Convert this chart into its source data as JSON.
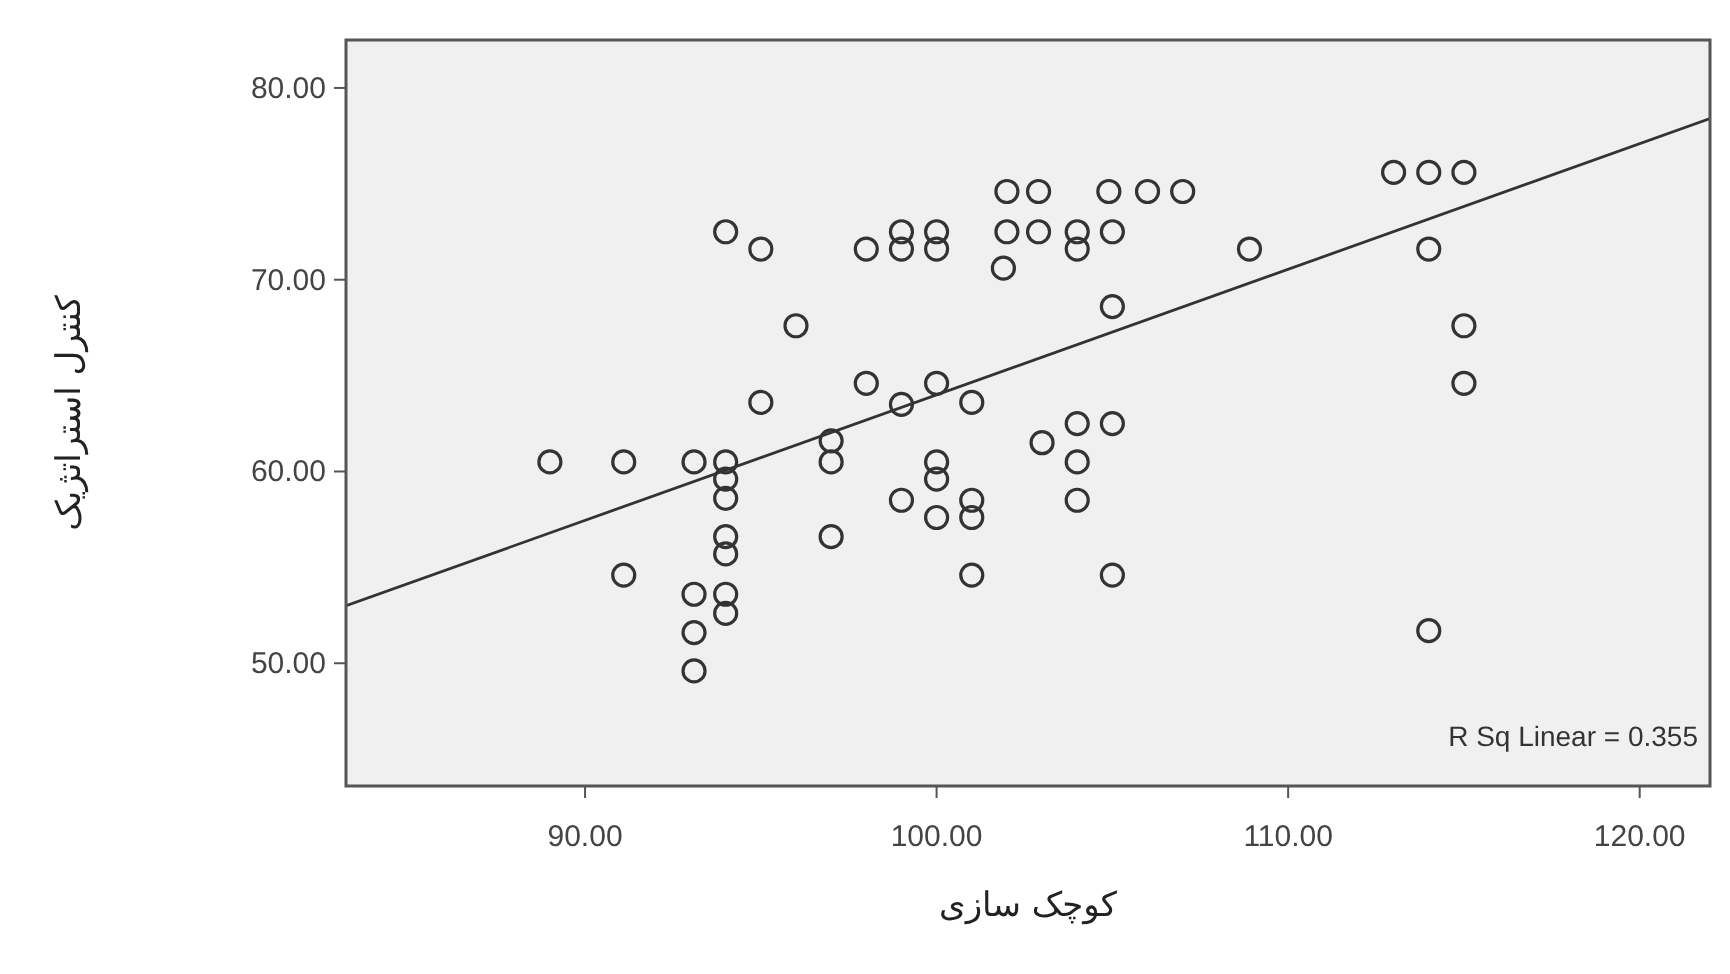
{
  "chart_data": {
    "type": "scatter",
    "xlabel": "کوچک سازی",
    "ylabel": "کنترل استراتژیک",
    "annotations": [
      "R Sq Linear = 0.355"
    ],
    "xlim": [
      83.2,
      122
    ],
    "ylim": [
      43.6,
      82.5
    ],
    "xticks": [
      {
        "value": 90,
        "label": "90.00"
      },
      {
        "value": 100,
        "label": "100.00"
      },
      {
        "value": 110,
        "label": "110.00"
      },
      {
        "value": 120,
        "label": "120.00"
      }
    ],
    "yticks": [
      {
        "value": 50,
        "label": "50.00"
      },
      {
        "value": 60,
        "label": "60.00"
      },
      {
        "value": 70,
        "label": "70.00"
      },
      {
        "value": 80,
        "label": "80.00"
      }
    ],
    "grid": false,
    "series": [
      {
        "marker": "circle",
        "color": "#333333",
        "x": [
          89.0,
          91.1,
          93.1,
          94.0,
          94.0,
          94.0,
          94.0,
          94.0,
          94.0,
          94.0,
          93.1,
          93.1,
          93.1,
          91.1,
          94.0,
          95.0,
          96.0,
          95.0,
          97.0,
          97.0,
          97.0,
          98.0,
          99.0,
          99.0,
          100.0,
          100.0,
          101.9,
          98.0,
          99.0,
          100.0,
          101.0,
          100.0,
          100.0,
          99.0,
          100.0,
          101.0,
          101.0,
          101.0,
          102.0,
          102.9,
          104.9,
          106.0,
          107.0,
          102.0,
          102.9,
          104.0,
          105.0,
          104.0,
          105.0,
          108.9,
          113.0,
          114.0,
          115.0,
          114.0,
          115.0,
          115.0,
          114.0,
          104.0,
          105.0,
          103.0,
          104.0,
          104.0,
          105.0
        ],
        "values": [
          60.5,
          60.5,
          60.5,
          60.5,
          59.6,
          58.6,
          56.6,
          55.7,
          53.6,
          52.6,
          53.6,
          51.6,
          49.6,
          54.6,
          72.5,
          71.6,
          67.6,
          63.6,
          61.6,
          60.5,
          56.6,
          71.6,
          72.5,
          71.6,
          72.5,
          71.6,
          70.6,
          64.6,
          63.5,
          64.6,
          63.6,
          60.5,
          59.6,
          58.5,
          57.6,
          58.5,
          57.6,
          54.6,
          74.6,
          74.6,
          74.6,
          74.6,
          74.6,
          72.5,
          72.5,
          72.5,
          72.5,
          71.6,
          68.6,
          71.6,
          75.6,
          75.6,
          75.6,
          71.6,
          67.6,
          64.6,
          51.7,
          62.5,
          62.5,
          61.5,
          60.5,
          58.5,
          54.6
        ]
      },
      {
        "type": "line",
        "marker": "none",
        "color": "#333333",
        "x": [
          83.2,
          122
        ],
        "values": [
          53.0,
          78.4
        ]
      }
    ]
  }
}
